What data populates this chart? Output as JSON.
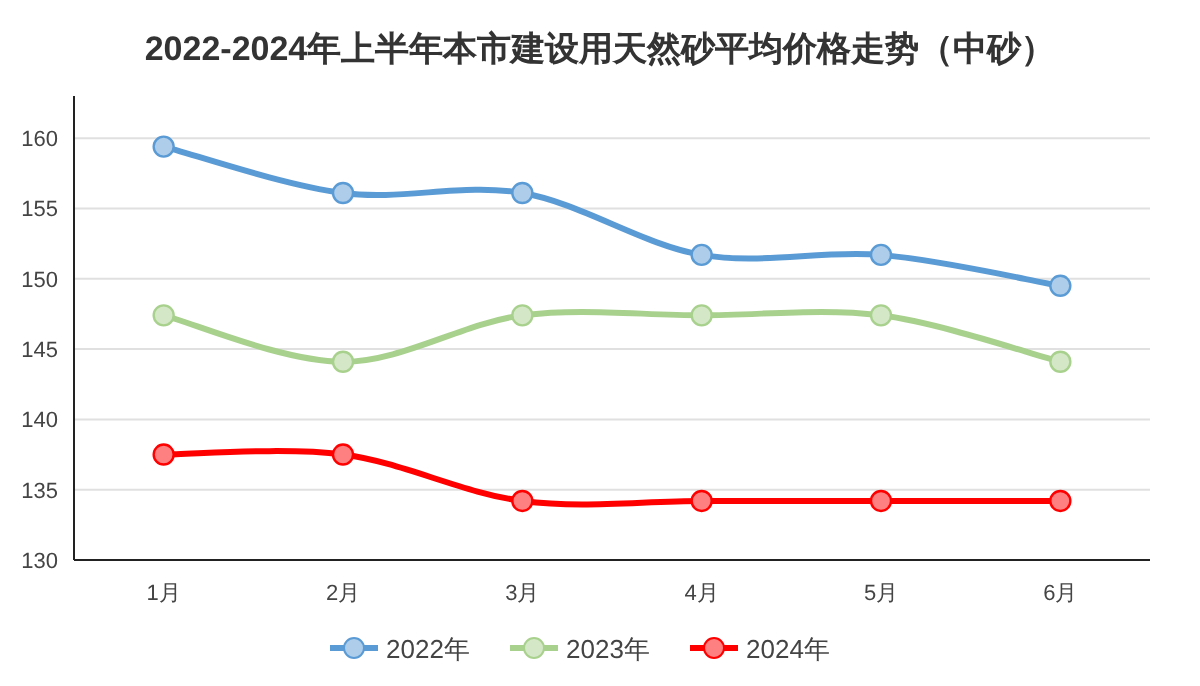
{
  "chart_data": {
    "type": "line",
    "title": "2022-2024年上半年本市建设用天然砂平均价格走势（中砂）",
    "categories": [
      "1月",
      "2月",
      "3月",
      "4月",
      "5月",
      "6月"
    ],
    "series": [
      {
        "name": "2022年",
        "color": "#5b9bd5",
        "values": [
          159.4,
          156.1,
          156.1,
          151.7,
          151.7,
          149.5
        ]
      },
      {
        "name": "2023年",
        "color": "#a9d18e",
        "values": [
          147.4,
          144.1,
          147.4,
          147.4,
          147.4,
          144.1
        ]
      },
      {
        "name": "2024年",
        "color": "#ff0000",
        "values": [
          137.5,
          137.5,
          134.2,
          134.2,
          134.2,
          134.2
        ]
      }
    ],
    "ylim": [
      130,
      163
    ],
    "yticks": [
      130,
      135,
      140,
      145,
      150,
      155,
      160
    ],
    "grid": "y",
    "legend": "bottom",
    "marker": "circle",
    "line_style": "solid"
  }
}
